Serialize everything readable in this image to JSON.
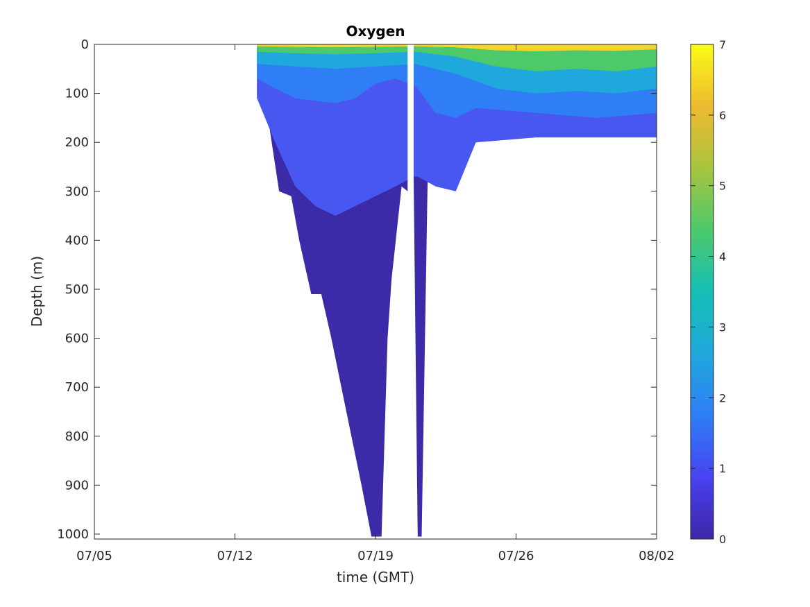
{
  "chart_data": {
    "type": "area",
    "title": "Oxygen",
    "xlabel": "time (GMT)",
    "ylabel": "Depth (m)",
    "x_ticks": [
      "07/05",
      "07/12",
      "07/19",
      "07/26",
      "08/02"
    ],
    "y_ticks": [
      "0",
      "100",
      "200",
      "300",
      "400",
      "500",
      "600",
      "700",
      "800",
      "900",
      "1000"
    ],
    "xlim_days": [
      0,
      28
    ],
    "ylim": [
      0,
      1010
    ],
    "y_reversed": true,
    "colorbar": {
      "ticks": [
        "0",
        "1",
        "2",
        "3",
        "4",
        "5",
        "6",
        "7"
      ],
      "range": [
        0,
        7
      ],
      "colormap": "parula"
    },
    "colormap_stops": [
      "#3e26a8",
      "#4743f0",
      "#2f7ef6",
      "#1fa8db",
      "#15bfb5",
      "#4dc96a",
      "#a8c43f",
      "#eeba30",
      "#f9fb15"
    ],
    "approx_depth_bands": [
      {
        "level": 0.35,
        "description_color": "#3b2ba8",
        "x_days": [
          8.1,
          8.5,
          9.2,
          9.8,
          10.2,
          10.8,
          11.3,
          11.8,
          12.3,
          12.8,
          13.3,
          13.8,
          14.3,
          14.6,
          14.8,
          15.3,
          15.6,
          15.9,
          16.1,
          16.3,
          16.6
        ],
        "depth": [
          110,
          110,
          300,
          310,
          400,
          510,
          510,
          600,
          700,
          800,
          900,
          1005,
          1005,
          600,
          480,
          290,
          300,
          280,
          1005,
          1005,
          270
        ]
      },
      {
        "level": 1.0,
        "description_color": "#4757f0",
        "x_days": [
          8.1,
          9.0,
          10.0,
          11.0,
          12.0,
          13.0,
          14.0,
          15.0,
          15.9,
          16.1,
          17.0,
          18.0,
          19.0,
          22.0,
          25.0,
          28.0
        ],
        "depth": [
          110,
          200,
          290,
          330,
          350,
          330,
          310,
          290,
          270,
          270,
          290,
          300,
          200,
          190,
          190,
          190
        ]
      },
      {
        "level": 2.0,
        "description_color": "#2f7ef6",
        "x_days": [
          8.1,
          9.0,
          10.0,
          11.0,
          12.0,
          13.0,
          14.0,
          15.0,
          16.0,
          17.0,
          18.0,
          19.0,
          22.0,
          25.0,
          28.0
        ],
        "depth": [
          70,
          90,
          110,
          115,
          120,
          110,
          80,
          70,
          85,
          140,
          150,
          130,
          140,
          150,
          140
        ]
      },
      {
        "level": 3.0,
        "description_color": "#1fa8db",
        "x_days": [
          8.1,
          10.0,
          12.0,
          14.0,
          16.0,
          18.0,
          20.0,
          22.0,
          24.0,
          26.0,
          28.0
        ],
        "depth": [
          40,
          45,
          50,
          45,
          40,
          60,
          90,
          100,
          95,
          100,
          90
        ]
      },
      {
        "level": 4.5,
        "description_color": "#4dc96a",
        "x_days": [
          8.1,
          10.0,
          12.0,
          14.0,
          16.0,
          18.0,
          20.0,
          22.0,
          24.0,
          26.0,
          28.0
        ],
        "depth": [
          15,
          18,
          20,
          18,
          15,
          25,
          45,
          55,
          50,
          55,
          45
        ]
      },
      {
        "level": 6.5,
        "description_color": "#f3d52a",
        "x_days": [
          8.1,
          10.0,
          12.0,
          14.0,
          16.0,
          18.0,
          20.0,
          22.0,
          24.0,
          26.0,
          28.0
        ],
        "depth": [
          4,
          5,
          6,
          5,
          4,
          6,
          12,
          14,
          12,
          13,
          10
        ]
      }
    ]
  }
}
